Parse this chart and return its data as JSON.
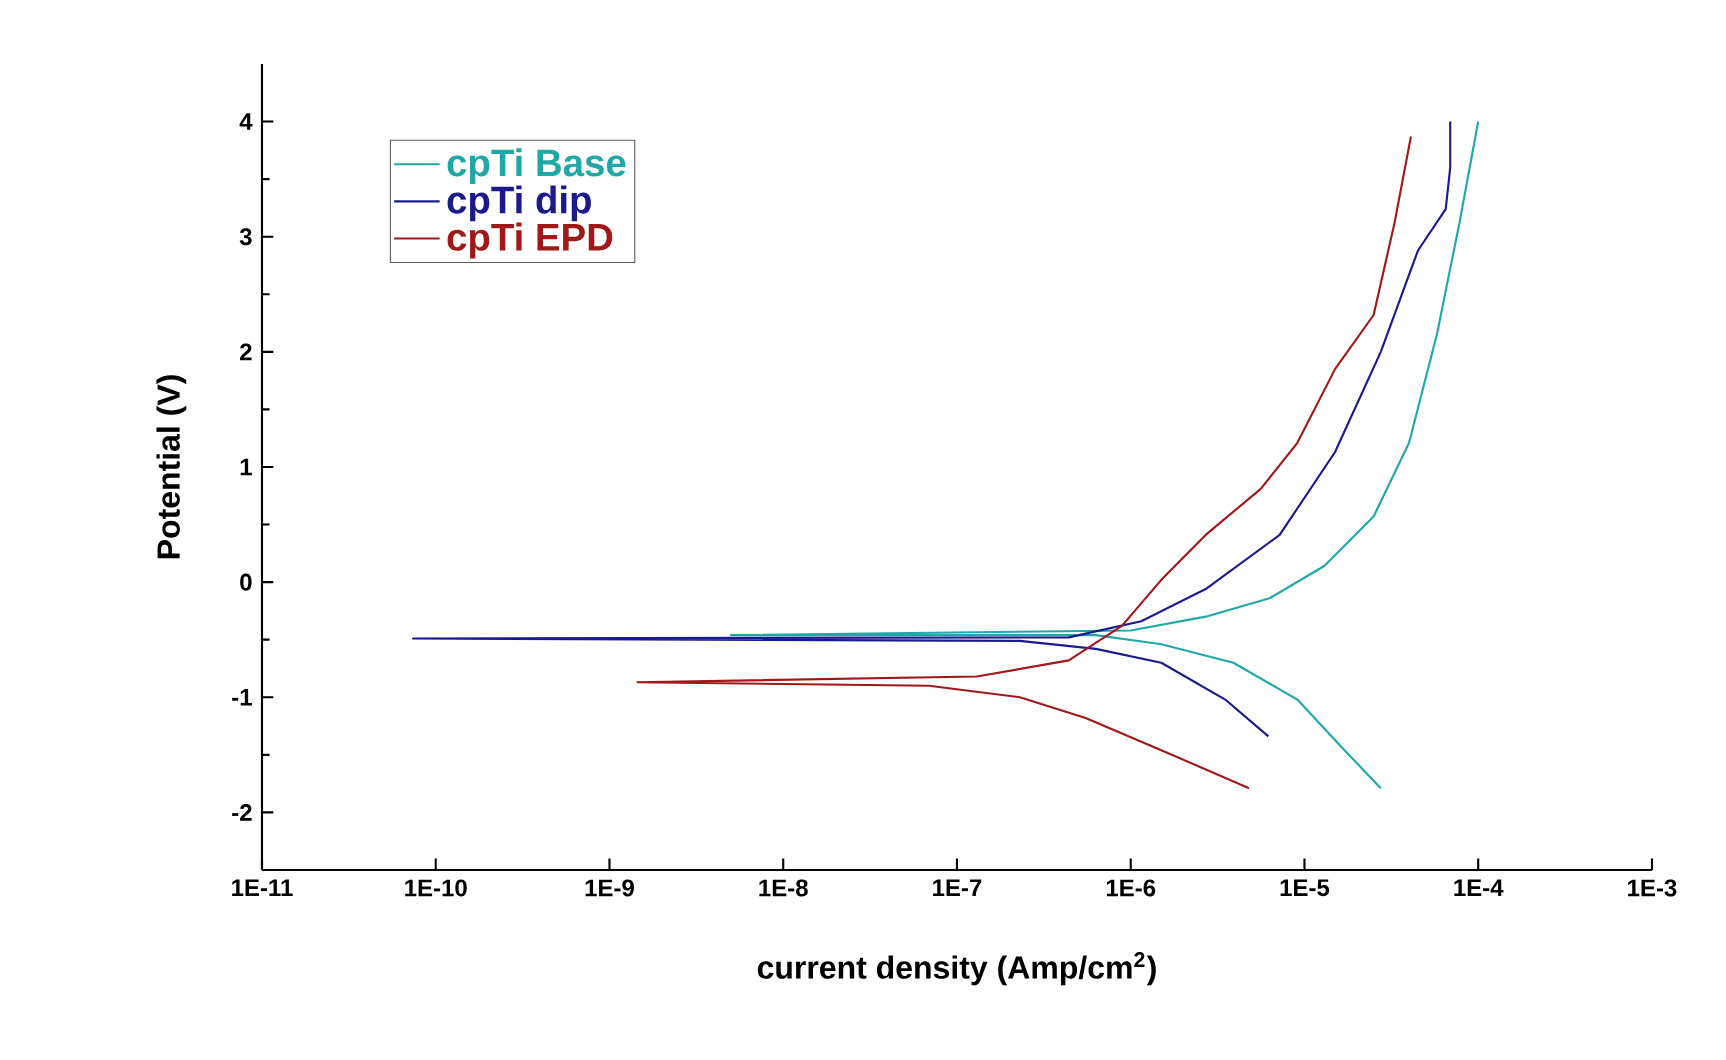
{
  "chart_data": {
    "type": "line",
    "xlabel": "current density (Amp/cm$^{2}$)",
    "ylabel": "Potential (V)",
    "log": "x",
    "legend": "top left",
    "marker": "none",
    "line_style": "solid",
    "grid": false,
    "xlim": [
      1e-11,
      0.001
    ],
    "ylim": [
      -2.5,
      4.5
    ],
    "xticks": [
      {
        "value": 1e-11,
        "label": "1E-11"
      },
      {
        "value": 1e-10,
        "label": "1E-10"
      },
      {
        "value": 1e-09,
        "label": "1E-9"
      },
      {
        "value": 1e-08,
        "label": "1E-8"
      },
      {
        "value": 1e-07,
        "label": "1E-7"
      },
      {
        "value": 1e-06,
        "label": "1E-6"
      },
      {
        "value": 1e-05,
        "label": "1E-5"
      },
      {
        "value": 0.0001,
        "label": "1E-4"
      },
      {
        "value": 0.001,
        "label": "1E-3"
      }
    ],
    "yticks": [
      -2,
      -1,
      0,
      1,
      2,
      3,
      4
    ],
    "series": [
      {
        "name": "cpTi Base",
        "color": "#20a8a8",
        "x": [
          2.75e-05,
          1.7e-05,
          9.1e-06,
          3.9e-06,
          1.5e-06,
          6.3e-07,
          5e-09,
          1e-06,
          2.7e-06,
          6.3e-06,
          1.3e-05,
          2.5e-05,
          4e-05,
          5.8e-05,
          7.8e-05,
          0.0001
        ],
        "values": [
          -1.79,
          -1.46,
          -1.02,
          -0.7,
          -0.54,
          -0.46,
          -0.46,
          -0.42,
          -0.3,
          -0.14,
          0.14,
          0.57,
          1.21,
          2.16,
          3.12,
          4.0
        ]
      },
      {
        "name": "cpTi dip",
        "color": "#1a1a8c",
        "x": [
          6.2e-06,
          3.5e-06,
          1.5e-06,
          6.3e-07,
          2.3e-07,
          7.4e-11,
          4.4e-07,
          1.15e-06,
          2.7e-06,
          7.2e-06,
          1.5e-05,
          2.75e-05,
          4.5e-05,
          6.5e-05,
          6.9e-05,
          6.9e-05
        ],
        "values": [
          -1.34,
          -1.02,
          -0.7,
          -0.58,
          -0.51,
          -0.49,
          -0.48,
          -0.34,
          -0.06,
          0.41,
          1.13,
          2.0,
          2.88,
          3.24,
          3.6,
          4.0
        ]
      },
      {
        "name": "cpTi EPD",
        "color": "#a01818",
        "x": [
          4.8e-06,
          1.5e-06,
          5.5e-07,
          2.3e-07,
          6.9e-08,
          1.45e-09,
          1.3e-07,
          4.4e-07,
          8.9e-07,
          1.5e-06,
          2.7e-06,
          5.6e-06,
          9.1e-06,
          1.5e-05,
          2.5e-05,
          3.3e-05,
          4.1e-05
        ],
        "values": [
          -1.79,
          -1.46,
          -1.18,
          -1.0,
          -0.9,
          -0.87,
          -0.82,
          -0.68,
          -0.38,
          0.02,
          0.41,
          0.81,
          1.21,
          1.85,
          2.32,
          3.12,
          3.87
        ]
      }
    ]
  }
}
